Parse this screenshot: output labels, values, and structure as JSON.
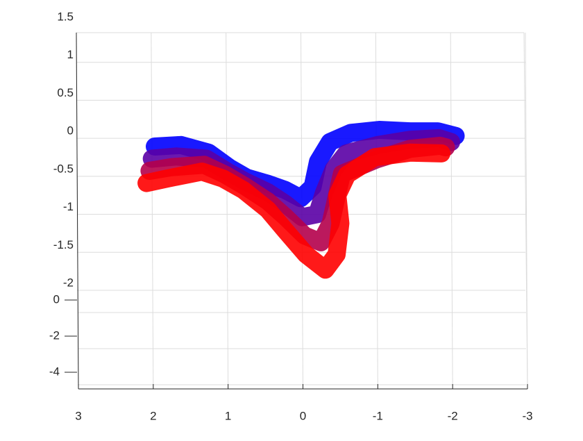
{
  "chart_data": {
    "type": "scatter3d",
    "xlim": [
      3,
      -3
    ],
    "xticks": [
      3,
      2,
      1,
      0,
      -1,
      -2,
      -3
    ],
    "ylim": [
      -2,
      1.5
    ],
    "yticks": [
      1.5,
      1,
      0.5,
      0,
      -0.5,
      -1,
      -1.5,
      -2
    ],
    "zlim": [
      -4,
      0
    ],
    "zticks": [
      0,
      -2,
      -4
    ],
    "grid": true,
    "series": [
      {
        "color": "#0000ff",
        "x": [
          1.98,
          1.63,
          1.26,
          0.98,
          0.75,
          0.47,
          0.24,
          0.03,
          -0.13,
          -0.2,
          -0.36,
          -0.64,
          -1.02,
          -1.43,
          -1.8,
          -2.04
        ],
        "values": [
          -0.2,
          -0.18,
          -0.28,
          -0.48,
          -0.61,
          -0.69,
          -0.77,
          -0.88,
          -0.73,
          -0.4,
          -0.14,
          -0.02,
          0.02,
          0,
          0,
          -0.06
        ]
      },
      {
        "color": "#5a00a5",
        "x": [
          2.02,
          1.69,
          1.29,
          1.01,
          0.77,
          0.47,
          0.24,
          0.01,
          -0.19,
          -0.28,
          -0.41,
          -0.58,
          -1.0,
          -1.43,
          -1.82,
          -1.98
        ],
        "values": [
          -0.36,
          -0.33,
          -0.36,
          -0.53,
          -0.66,
          -0.8,
          -0.95,
          -1.13,
          -1.09,
          -0.81,
          -0.5,
          -0.29,
          -0.18,
          -0.11,
          -0.09,
          -0.14
        ]
      },
      {
        "color": "#b4004b",
        "x": [
          2.05,
          1.75,
          1.32,
          1.04,
          0.78,
          0.47,
          0.24,
          -0.02,
          -0.24,
          -0.37,
          -0.45,
          -0.52,
          -0.98,
          -1.43,
          -1.83,
          -1.91
        ],
        "values": [
          -0.52,
          -0.47,
          -0.44,
          -0.57,
          -0.72,
          -0.92,
          -1.12,
          -1.37,
          -1.46,
          -1.21,
          -0.86,
          -0.56,
          -0.37,
          -0.23,
          -0.19,
          -0.21
        ]
      },
      {
        "color": "#ff0000",
        "x": [
          2.09,
          1.81,
          1.35,
          1.07,
          0.8,
          0.47,
          0.24,
          -0.04,
          -0.3,
          -0.45,
          -0.5,
          -0.46,
          -0.59,
          -0.96,
          -1.43,
          -1.85
        ],
        "values": [
          -0.68,
          -0.62,
          -0.53,
          -0.62,
          -0.77,
          -1.03,
          -1.3,
          -1.62,
          -1.82,
          -1.62,
          -1.21,
          -0.84,
          -0.57,
          -0.34,
          -0.28,
          -0.29
        ]
      }
    ]
  }
}
